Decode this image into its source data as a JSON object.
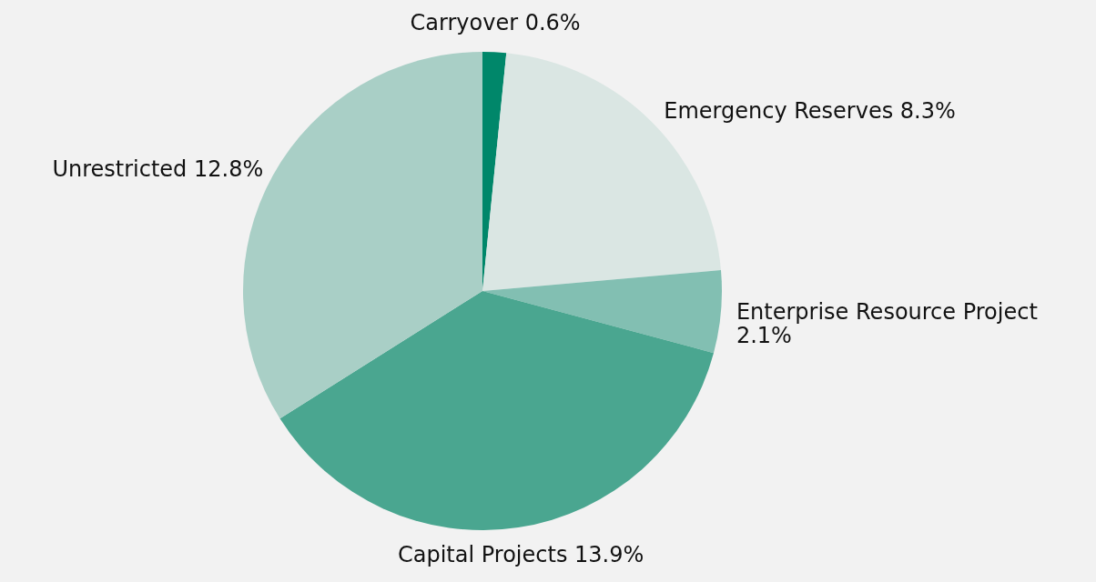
{
  "chart_data": {
    "type": "pie",
    "categories": [
      "Carryover",
      "Emergency Reserves",
      "Enterprise Resource Project",
      "Capital Projects",
      "Unrestricted"
    ],
    "values": [
      0.6,
      8.3,
      2.1,
      13.9,
      12.8
    ],
    "value_labels": [
      "0.6%",
      "8.3%",
      "2.1%",
      "13.9%",
      "12.8%"
    ],
    "colors": [
      "#00876a",
      "#dae6e3",
      "#82bfb2",
      "#4aa690",
      "#a9cfc6"
    ]
  }
}
